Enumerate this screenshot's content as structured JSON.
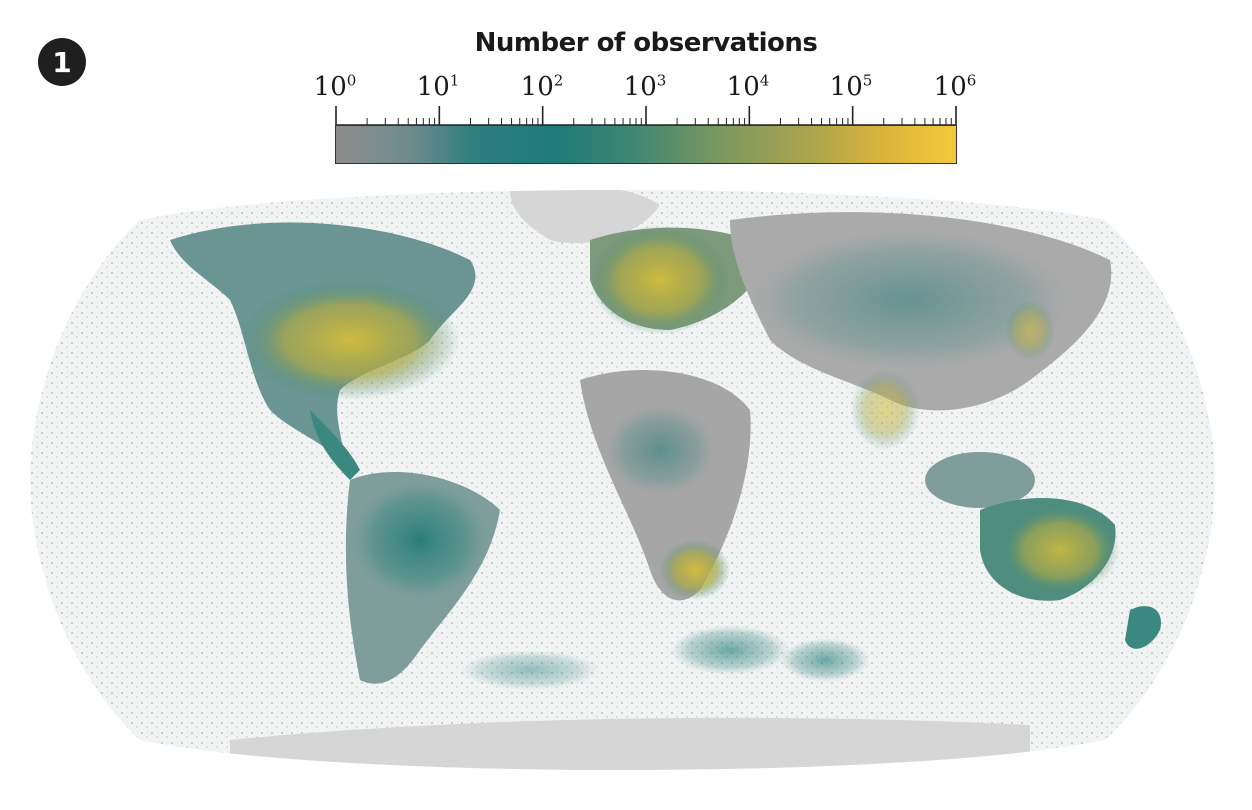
{
  "figure": {
    "panel_number": "1"
  },
  "legend": {
    "title": "Number of observations",
    "scale": "log10",
    "range": [
      1,
      1000000
    ],
    "tick_base": "10",
    "tick_exponents": [
      "0",
      "1",
      "2",
      "3",
      "4",
      "5",
      "6"
    ],
    "colors": {
      "low": "#8d8d8d",
      "mid": "#1f7a78",
      "high": "#f3c93a"
    }
  },
  "map": {
    "projection": "robinson",
    "land_color": "#c8c8c8",
    "ice_color": "#d6d6d6",
    "ocean_color": "#ffffff",
    "hotspots": [
      "North America",
      "Europe",
      "Australia",
      "South Africa",
      "India",
      "Japan"
    ]
  }
}
